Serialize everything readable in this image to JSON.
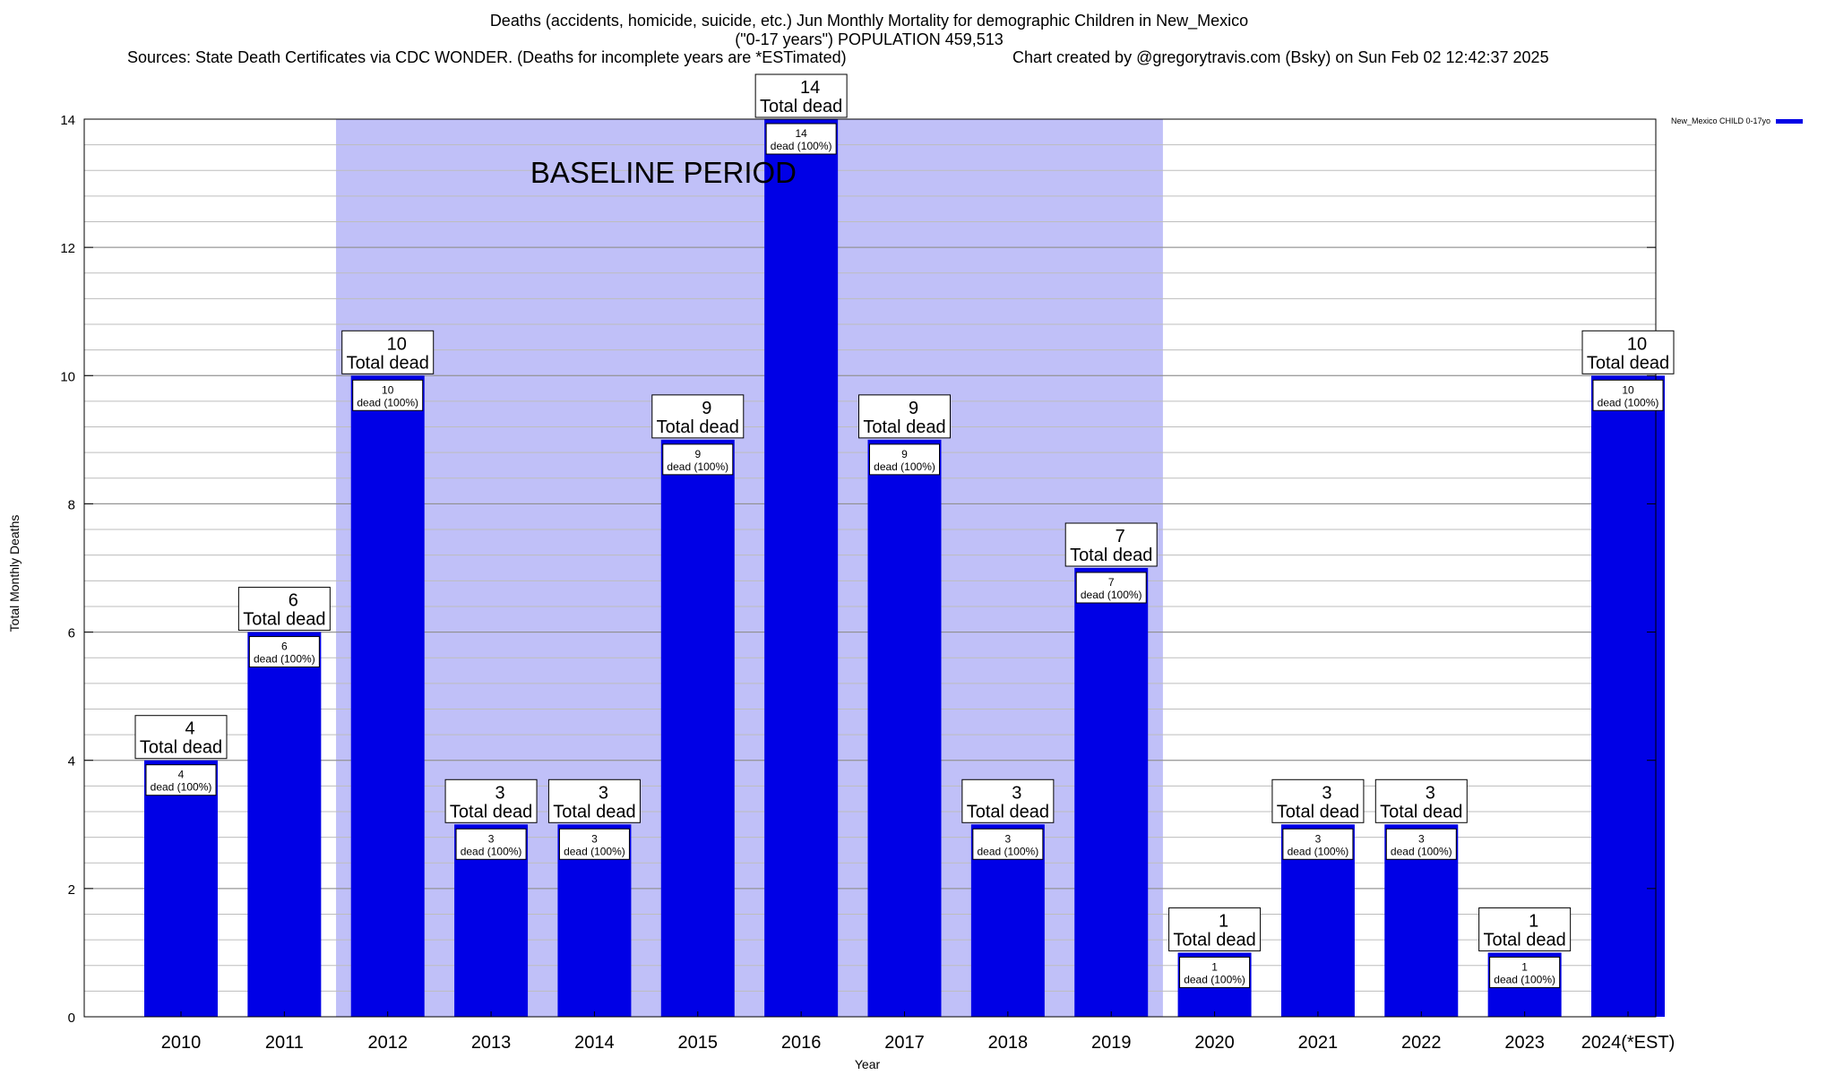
{
  "title": {
    "line1": "Deaths (accidents, homicide, suicide, etc.) Jun Monthly Mortality for demographic Children in New_Mexico",
    "line2": "(\"0-17 years\") POPULATION 459,513",
    "sources": "Sources: State Death Certificates via CDC WONDER. (Deaths for incomplete years are *ESTimated)",
    "credit": "Chart created by @gregorytravis.com (Bsky) on Sun Feb 02 12:42:37 2025"
  },
  "colors": {
    "bar": "#0000e6",
    "baseline_band": "#c0c0f8",
    "grid": "#bdbdbd"
  },
  "chart_data": {
    "type": "bar",
    "xlabel": "Year",
    "ylabel": "Total Monthly Deaths",
    "ylim": [
      0,
      14
    ],
    "yticks": [
      0,
      2,
      4,
      6,
      8,
      10,
      12,
      14
    ],
    "grid": true,
    "legend_position": "top-right, outside plot",
    "categories": [
      "2010",
      "2011",
      "2012",
      "2013",
      "2014",
      "2015",
      "2016",
      "2017",
      "2018",
      "2019",
      "2020",
      "2021",
      "2022",
      "2023",
      "2024(*EST)"
    ],
    "series": [
      {
        "name": "New_Mexico CHILD 0-17yo",
        "values": [
          4,
          6,
          10,
          3,
          3,
          9,
          14,
          9,
          3,
          7,
          1,
          3,
          3,
          1,
          10
        ]
      }
    ],
    "total_label_suffix": "Total dead",
    "inner_label_template": "dead (100%)",
    "baseline_period": {
      "label": "BASELINE PERIOD",
      "from": "2012",
      "to": "2019"
    }
  }
}
